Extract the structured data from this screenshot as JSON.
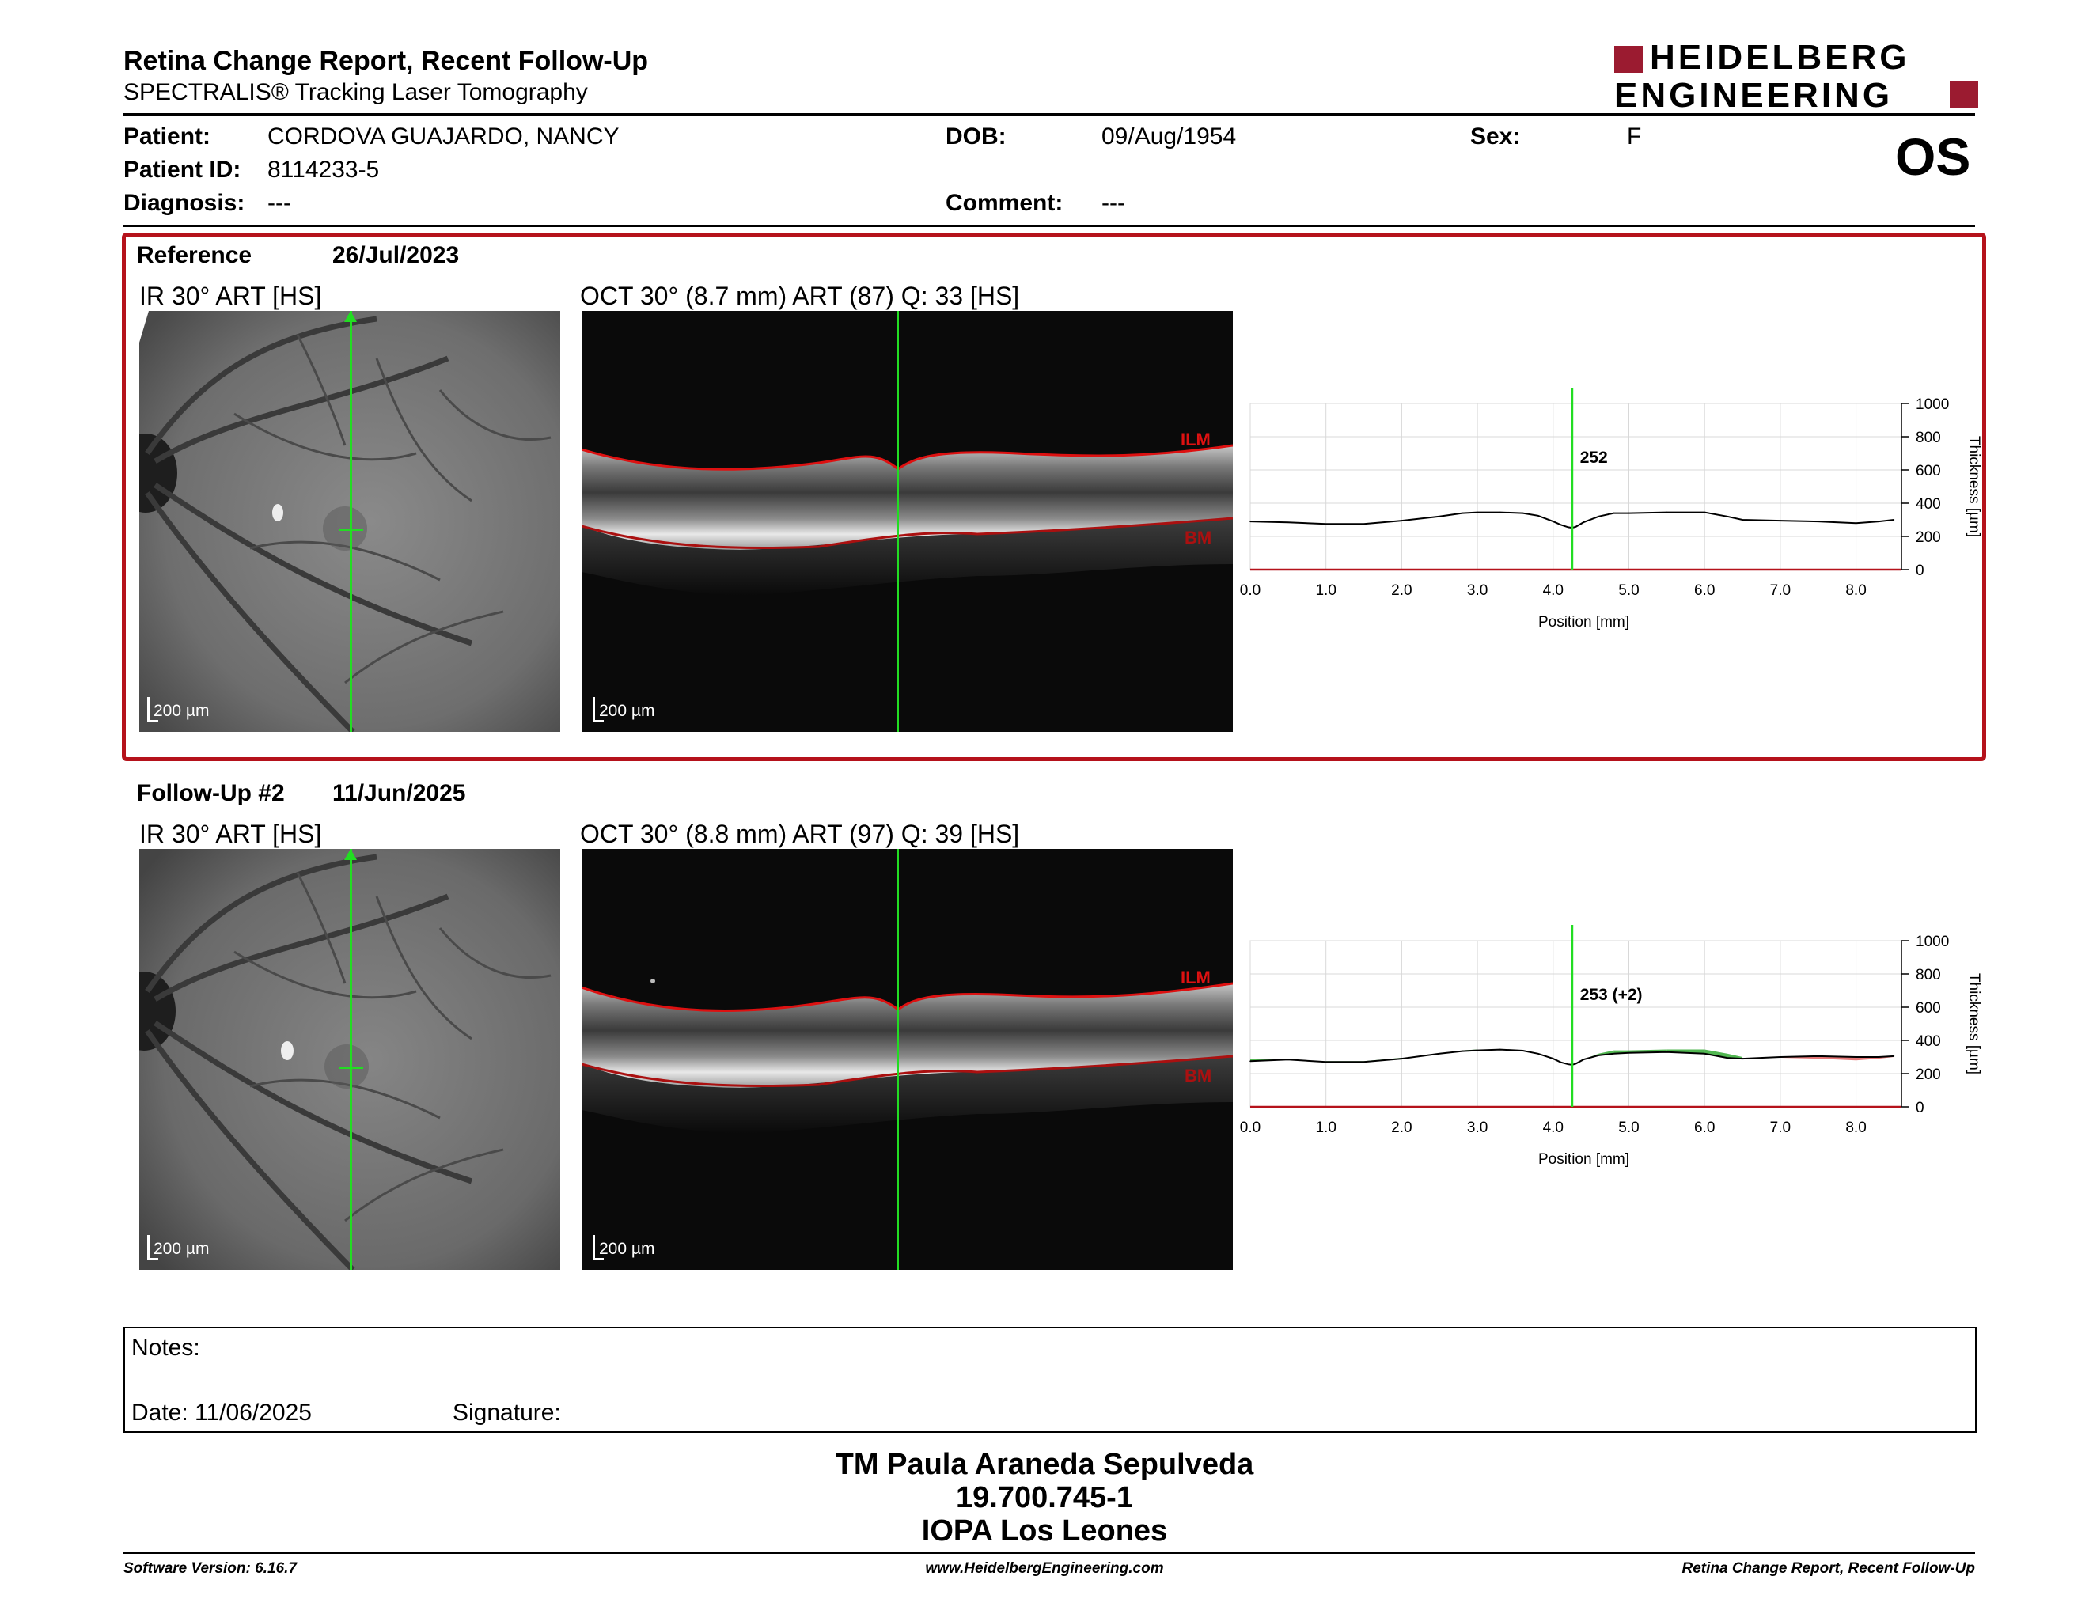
{
  "header": {
    "title": "Retina Change Report, Recent Follow-Up",
    "subtitle": "SPECTRALIS® Tracking Laser Tomography",
    "logo_line1": "HEIDELBERG",
    "logo_line2": "ENGINEERING",
    "eye": "OS"
  },
  "patient": {
    "name_label": "Patient:",
    "name": "CORDOVA GUAJARDO, NANCY",
    "id_label": "Patient ID:",
    "id": "8114233-5",
    "diagnosis_label": "Diagnosis:",
    "diagnosis": "---",
    "dob_label": "DOB:",
    "dob": "09/Aug/1954",
    "comment_label": "Comment:",
    "comment": "---",
    "sex_label": "Sex:",
    "sex": "F"
  },
  "reference": {
    "label": "Reference",
    "date": "26/Jul/2023",
    "ir_title": "IR 30° ART [HS]",
    "oct_title": "OCT 30° (8.7 mm) ART (87) Q: 33 [HS]",
    "scale": "200 µm",
    "ilm": "ILM",
    "bm": "BM"
  },
  "followup": {
    "label": "Follow-Up #2",
    "date": "11/Jun/2025",
    "ir_title": "IR 30° ART [HS]",
    "oct_title": "OCT 30° (8.8 mm) ART (97) Q: 39 [HS]",
    "scale": "200 µm",
    "ilm": "ILM",
    "bm": "BM"
  },
  "chart_data": [
    {
      "type": "line",
      "xlabel": "Position [mm]",
      "ylabel": "Thickness [µm]",
      "xlim": [
        0,
        8.6
      ],
      "ylim": [
        0,
        1000
      ],
      "x_ticks": [
        "0.0",
        "1.0",
        "2.0",
        "3.0",
        "4.0",
        "5.0",
        "6.0",
        "7.0",
        "8.0"
      ],
      "y_ticks": [
        "0",
        "200",
        "400",
        "600",
        "800",
        "1000"
      ],
      "grid": true,
      "cursor_x": 4.25,
      "cursor_label": "252",
      "x": [
        0.0,
        0.5,
        1.0,
        1.5,
        2.0,
        2.5,
        2.8,
        3.0,
        3.3,
        3.6,
        3.8,
        4.0,
        4.1,
        4.2,
        4.25,
        4.3,
        4.4,
        4.6,
        4.8,
        5.0,
        5.5,
        6.0,
        6.3,
        6.5,
        7.0,
        7.5,
        8.0,
        8.3,
        8.5
      ],
      "series": [
        {
          "values": [
            290,
            285,
            275,
            275,
            295,
            320,
            340,
            345,
            345,
            340,
            325,
            290,
            270,
            255,
            252,
            258,
            285,
            320,
            340,
            340,
            345,
            345,
            320,
            300,
            295,
            290,
            280,
            290,
            300
          ]
        }
      ]
    },
    {
      "type": "line",
      "xlabel": "Position [mm]",
      "ylabel": "Thickness [µm]",
      "xlim": [
        0,
        8.6
      ],
      "ylim": [
        0,
        1000
      ],
      "x_ticks": [
        "0.0",
        "1.0",
        "2.0",
        "3.0",
        "4.0",
        "5.0",
        "6.0",
        "7.0",
        "8.0"
      ],
      "y_ticks": [
        "0",
        "200",
        "400",
        "600",
        "800",
        "1000"
      ],
      "grid": true,
      "cursor_x": 4.25,
      "cursor_label": "253 (+2)",
      "x": [
        0.0,
        0.5,
        1.0,
        1.5,
        2.0,
        2.5,
        2.8,
        3.0,
        3.3,
        3.6,
        3.8,
        4.0,
        4.1,
        4.2,
        4.25,
        4.3,
        4.4,
        4.6,
        4.8,
        5.0,
        5.5,
        6.0,
        6.3,
        6.5,
        7.0,
        7.5,
        8.0,
        8.3,
        8.5
      ],
      "series": [
        {
          "values": [
            275,
            285,
            270,
            270,
            290,
            320,
            335,
            340,
            345,
            338,
            320,
            290,
            268,
            256,
            253,
            260,
            285,
            310,
            320,
            325,
            330,
            320,
            295,
            290,
            300,
            305,
            300,
            300,
            305
          ]
        }
      ],
      "change_increase_color": "#33aa33",
      "change_decrease_color": "#e06060"
    }
  ],
  "notes": {
    "label": "Notes:",
    "date": "Date: 11/06/2025",
    "signature": "Signature:"
  },
  "operator": {
    "name": "TM Paula Araneda Sepulveda",
    "rut": "19.700.745-1",
    "clinic": "IOPA Los Leones"
  },
  "footer": {
    "version": "Software Version: 6.16.7",
    "website": "www.HeidelbergEngineering.com",
    "report": "Retina Change Report, Recent Follow-Up"
  },
  "colors": {
    "frame": "#b5121b",
    "cursor": "#22dd22",
    "ilm_line": "#dd1111",
    "bm_line": "#aa1010",
    "logo": "#9b1b30"
  }
}
